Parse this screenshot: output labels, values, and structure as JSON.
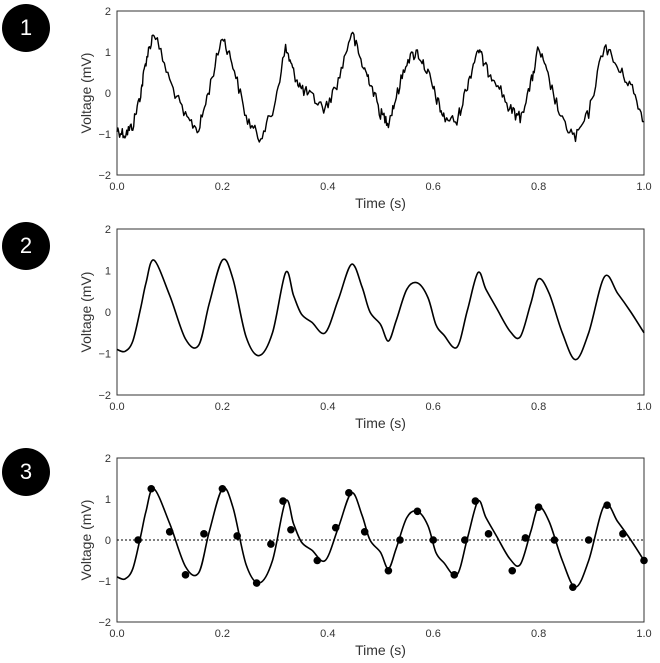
{
  "badges": [
    "1",
    "2",
    "3"
  ],
  "colors": {
    "line": "#000000",
    "frame": "#333333",
    "zero": "#000000"
  },
  "chart_data": [
    {
      "type": "line",
      "xlabel": "Time (s)",
      "ylabel": "Voltage (mV)",
      "xlim": [
        0,
        1
      ],
      "ylim": [
        -2,
        2
      ],
      "xticks": [
        "0.0",
        "0.2",
        "0.4",
        "0.6",
        "0.8",
        "1.0"
      ],
      "yticks": [
        "2",
        "1",
        "0",
        "−1",
        "−2"
      ],
      "grid": false,
      "noisy": true,
      "x": [
        0,
        0.015,
        0.03,
        0.045,
        0.055,
        0.07,
        0.1,
        0.13,
        0.155,
        0.175,
        0.2,
        0.22,
        0.245,
        0.27,
        0.295,
        0.32,
        0.335,
        0.35,
        0.37,
        0.395,
        0.42,
        0.445,
        0.465,
        0.48,
        0.5,
        0.515,
        0.53,
        0.55,
        0.57,
        0.59,
        0.605,
        0.62,
        0.645,
        0.665,
        0.685,
        0.7,
        0.72,
        0.745,
        0.765,
        0.785,
        0.8,
        0.82,
        0.845,
        0.87,
        0.895,
        0.925,
        0.95,
        0.975,
        1.0
      ],
      "y": [
        -0.9,
        -1.0,
        -0.8,
        0.0,
        0.8,
        1.5,
        0.3,
        -0.6,
        -0.9,
        0.1,
        1.4,
        0.7,
        -0.6,
        -1.1,
        -0.5,
        1.1,
        0.5,
        0.1,
        -0.1,
        -0.4,
        0.3,
        1.5,
        0.7,
        0.3,
        -0.5,
        -0.7,
        -0.1,
        0.8,
        1.0,
        0.5,
        -0.1,
        -0.6,
        -0.7,
        0.2,
        1.1,
        0.6,
        0.3,
        -0.4,
        -0.6,
        0.2,
        1.1,
        0.3,
        -0.7,
        -1.1,
        -0.5,
        1.2,
        0.6,
        0.2,
        -0.7
      ]
    },
    {
      "type": "line",
      "xlabel": "Time (s)",
      "ylabel": "Voltage (mV)",
      "xlim": [
        0,
        1
      ],
      "ylim": [
        -2,
        2
      ],
      "xticks": [
        "0.0",
        "0.2",
        "0.4",
        "0.6",
        "0.8",
        "1.0"
      ],
      "yticks": [
        "2",
        "1",
        "0",
        "−1",
        "−2"
      ],
      "grid": false,
      "x": [
        0,
        0.015,
        0.03,
        0.045,
        0.055,
        0.07,
        0.1,
        0.13,
        0.155,
        0.175,
        0.2,
        0.22,
        0.245,
        0.27,
        0.295,
        0.32,
        0.335,
        0.35,
        0.37,
        0.395,
        0.42,
        0.445,
        0.465,
        0.48,
        0.5,
        0.515,
        0.53,
        0.55,
        0.57,
        0.59,
        0.605,
        0.62,
        0.645,
        0.665,
        0.685,
        0.7,
        0.72,
        0.745,
        0.765,
        0.785,
        0.8,
        0.82,
        0.845,
        0.87,
        0.895,
        0.925,
        0.95,
        0.975,
        1.0
      ],
      "y": [
        -0.9,
        -0.95,
        -0.7,
        0.1,
        0.7,
        1.25,
        0.4,
        -0.65,
        -0.8,
        0.2,
        1.25,
        0.8,
        -0.6,
        -1.05,
        -0.5,
        0.95,
        0.4,
        -0.05,
        -0.25,
        -0.5,
        0.3,
        1.15,
        0.6,
        0.0,
        -0.3,
        -0.7,
        -0.2,
        0.55,
        0.7,
        0.35,
        -0.3,
        -0.55,
        -0.85,
        0.05,
        0.95,
        0.55,
        0.1,
        -0.45,
        -0.6,
        0.2,
        0.8,
        0.45,
        -0.5,
        -1.15,
        -0.5,
        0.85,
        0.45,
        0.0,
        -0.5
      ]
    },
    {
      "type": "line",
      "xlabel": "Time (s)",
      "ylabel": "Voltage (mV)",
      "xlim": [
        0,
        1
      ],
      "ylim": [
        -2,
        2
      ],
      "xticks": [
        "0.0",
        "0.2",
        "0.4",
        "0.6",
        "0.8",
        "1.0"
      ],
      "yticks": [
        "2",
        "1",
        "0",
        "−1",
        "−2"
      ],
      "grid": false,
      "zero_line": true,
      "x": [
        0,
        0.015,
        0.03,
        0.045,
        0.055,
        0.07,
        0.1,
        0.13,
        0.155,
        0.175,
        0.2,
        0.22,
        0.245,
        0.27,
        0.295,
        0.32,
        0.335,
        0.35,
        0.37,
        0.395,
        0.42,
        0.445,
        0.465,
        0.48,
        0.5,
        0.515,
        0.53,
        0.55,
        0.57,
        0.59,
        0.605,
        0.62,
        0.645,
        0.665,
        0.685,
        0.7,
        0.72,
        0.745,
        0.765,
        0.785,
        0.8,
        0.82,
        0.845,
        0.87,
        0.895,
        0.925,
        0.95,
        0.975,
        1.0
      ],
      "y": [
        -0.9,
        -0.95,
        -0.7,
        0.1,
        0.7,
        1.25,
        0.4,
        -0.65,
        -0.8,
        0.2,
        1.25,
        0.8,
        -0.6,
        -1.05,
        -0.5,
        0.95,
        0.4,
        -0.05,
        -0.25,
        -0.5,
        0.3,
        1.15,
        0.6,
        0.0,
        -0.3,
        -0.7,
        -0.2,
        0.55,
        0.7,
        0.35,
        -0.3,
        -0.55,
        -0.85,
        0.05,
        0.95,
        0.55,
        0.1,
        -0.45,
        -0.6,
        0.2,
        0.8,
        0.45,
        -0.5,
        -1.15,
        -0.5,
        0.85,
        0.45,
        0.0,
        -0.5
      ],
      "markers": {
        "x": [
          0.04,
          0.065,
          0.1,
          0.13,
          0.165,
          0.2,
          0.228,
          0.265,
          0.292,
          0.315,
          0.33,
          0.38,
          0.415,
          0.44,
          0.47,
          0.515,
          0.537,
          0.57,
          0.6,
          0.64,
          0.66,
          0.68,
          0.705,
          0.75,
          0.775,
          0.8,
          0.83,
          0.865,
          0.895,
          0.93,
          0.96,
          1.0
        ],
        "y": [
          0.0,
          1.25,
          0.2,
          -0.85,
          0.15,
          1.25,
          0.1,
          -1.05,
          -0.1,
          0.95,
          0.25,
          -0.5,
          0.3,
          1.15,
          0.2,
          -0.75,
          0.0,
          0.7,
          0.0,
          -0.85,
          0.0,
          0.95,
          0.15,
          -0.75,
          0.05,
          0.8,
          0.0,
          -1.15,
          0.0,
          0.85,
          0.15,
          -0.5
        ]
      }
    }
  ]
}
